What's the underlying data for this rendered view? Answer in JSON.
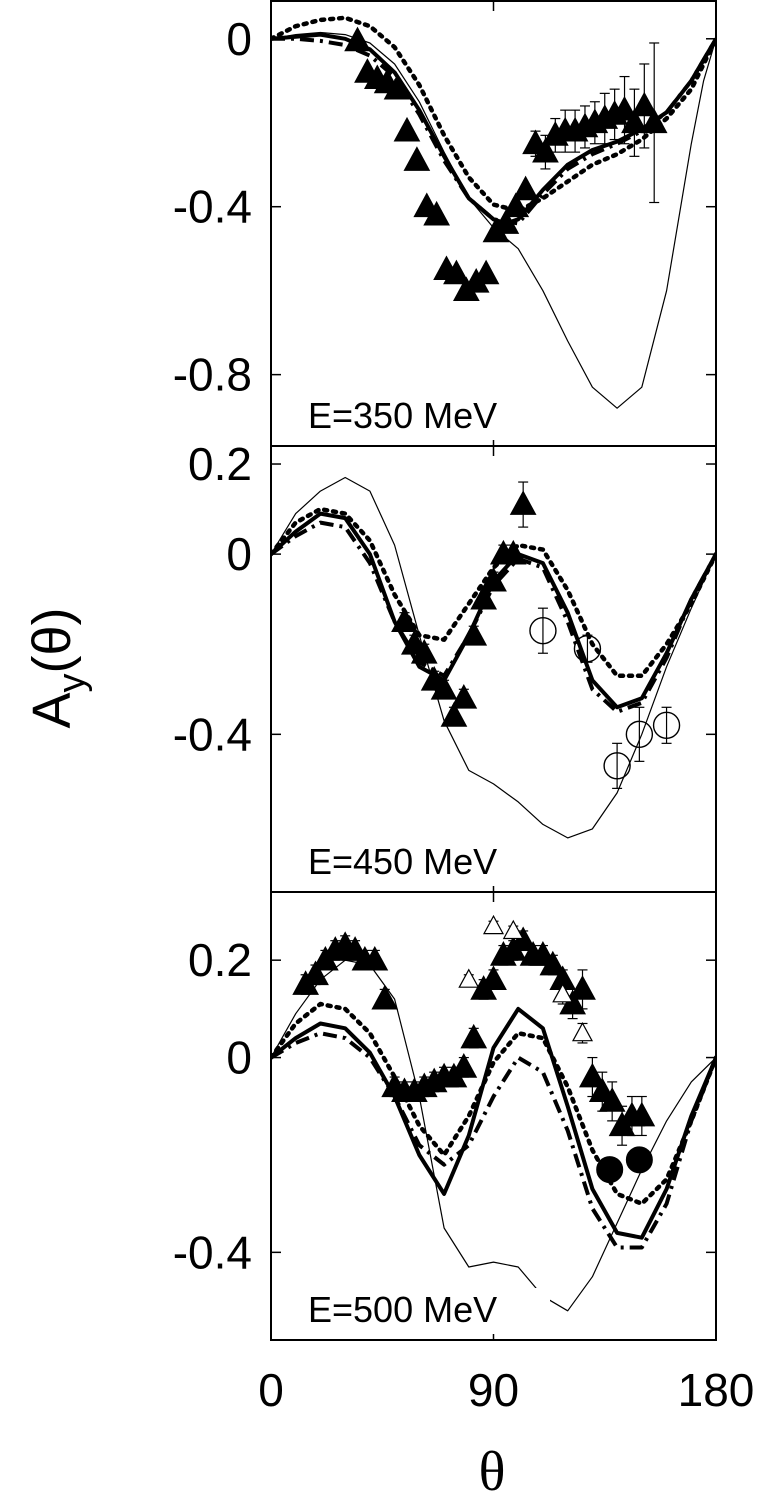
{
  "figure": {
    "ylabel_main": "A",
    "ylabel_sub": "y",
    "ylabel_arg": "(θ)",
    "xlabel": "θ"
  },
  "chart_data": [
    {
      "type": "line",
      "panel_label": "E=350 MeV",
      "xlim": [
        0,
        180
      ],
      "ylim": [
        -0.97,
        0.09
      ],
      "x_ticks": [
        0,
        90,
        180
      ],
      "x_tick_labels": [
        "0",
        "90",
        "180"
      ],
      "y_ticks": [
        0,
        -0.4,
        -0.8
      ],
      "y_tick_labels": [
        "0",
        "-0.4",
        "-0.8"
      ],
      "show_x_tick_labels": false,
      "series": [
        {
          "style": "thick-solid",
          "x": [
            0,
            10,
            20,
            30,
            40,
            50,
            60,
            70,
            80,
            90,
            95,
            100,
            110,
            120,
            130,
            140,
            150,
            160,
            170,
            180
          ],
          "y": [
            0,
            0.005,
            0.01,
            0.0,
            -0.025,
            -0.08,
            -0.17,
            -0.28,
            -0.38,
            -0.43,
            -0.44,
            -0.43,
            -0.36,
            -0.3,
            -0.265,
            -0.245,
            -0.215,
            -0.175,
            -0.1,
            0
          ]
        },
        {
          "style": "dotted",
          "x": [
            0,
            10,
            20,
            30,
            40,
            50,
            60,
            70,
            80,
            90,
            100,
            110,
            120,
            130,
            140,
            150,
            160,
            170,
            180
          ],
          "y": [
            0,
            0.03,
            0.045,
            0.05,
            0.03,
            -0.02,
            -0.11,
            -0.23,
            -0.33,
            -0.395,
            -0.41,
            -0.38,
            -0.34,
            -0.3,
            -0.275,
            -0.24,
            -0.19,
            -0.12,
            0
          ]
        },
        {
          "style": "dash-dot",
          "x": [
            0,
            10,
            20,
            30,
            40,
            50,
            60,
            70,
            80,
            90,
            100,
            110,
            120,
            130,
            140,
            150,
            160,
            170,
            180
          ],
          "y": [
            0,
            0.0,
            -0.005,
            -0.015,
            -0.04,
            -0.09,
            -0.18,
            -0.29,
            -0.38,
            -0.43,
            -0.44,
            -0.37,
            -0.31,
            -0.275,
            -0.25,
            -0.22,
            -0.175,
            -0.1,
            0
          ]
        },
        {
          "style": "thin-solid",
          "x": [
            0,
            10,
            20,
            30,
            40,
            50,
            60,
            70,
            80,
            90,
            100,
            110,
            120,
            130,
            140,
            150,
            160,
            170,
            175,
            180
          ],
          "y": [
            0,
            0.01,
            0.015,
            0.01,
            -0.01,
            -0.06,
            -0.15,
            -0.27,
            -0.38,
            -0.45,
            -0.5,
            -0.6,
            -0.72,
            -0.83,
            -0.88,
            -0.83,
            -0.6,
            -0.25,
            -0.1,
            0
          ]
        }
      ],
      "points": [
        {
          "marker": "filled-triangle",
          "x": [
            35,
            39,
            43,
            47,
            51,
            55,
            59,
            63,
            67,
            71,
            75,
            79,
            83,
            87,
            91,
            95,
            99,
            103,
            107,
            111,
            115,
            119,
            123,
            127,
            131,
            135,
            139,
            143,
            147,
            151,
            155
          ],
          "y": [
            -0.005,
            -0.08,
            -0.095,
            -0.105,
            -0.12,
            -0.22,
            -0.29,
            -0.4,
            -0.42,
            -0.55,
            -0.56,
            -0.6,
            -0.58,
            -0.56,
            -0.46,
            -0.44,
            -0.4,
            -0.36,
            -0.25,
            -0.27,
            -0.23,
            -0.22,
            -0.22,
            -0.21,
            -0.2,
            -0.19,
            -0.18,
            -0.17,
            -0.2,
            -0.16,
            -0.2
          ],
          "yerr": [
            0.01,
            0.01,
            0.01,
            0.01,
            0.01,
            0.01,
            0.01,
            0.01,
            0.01,
            0.01,
            0.01,
            0.01,
            0.01,
            0.01,
            0.01,
            0.01,
            0.01,
            0.01,
            0.03,
            0.04,
            0.04,
            0.05,
            0.05,
            0.05,
            0.05,
            0.06,
            0.06,
            0.08,
            0.08,
            0.1,
            0.19
          ]
        }
      ]
    },
    {
      "type": "line",
      "panel_label": "E=450 MeV",
      "xlim": [
        0,
        180
      ],
      "ylim": [
        -0.75,
        0.24
      ],
      "x_ticks": [
        0,
        90,
        180
      ],
      "x_tick_labels": [
        "0",
        "90",
        "180"
      ],
      "y_ticks": [
        0.2,
        0,
        -0.4
      ],
      "y_tick_labels": [
        "0.2",
        "0",
        "-0.4"
      ],
      "show_x_tick_labels": false,
      "series": [
        {
          "style": "thick-solid",
          "x": [
            0,
            10,
            20,
            30,
            40,
            50,
            60,
            70,
            80,
            90,
            100,
            110,
            120,
            130,
            140,
            150,
            160,
            170,
            180
          ],
          "y": [
            0,
            0.05,
            0.09,
            0.08,
            0.0,
            -0.15,
            -0.25,
            -0.28,
            -0.18,
            -0.06,
            0.0,
            -0.02,
            -0.13,
            -0.28,
            -0.34,
            -0.32,
            -0.22,
            -0.1,
            0
          ]
        },
        {
          "style": "dotted",
          "x": [
            0,
            10,
            20,
            30,
            40,
            50,
            60,
            70,
            80,
            90,
            100,
            110,
            120,
            130,
            140,
            150,
            160,
            170,
            180
          ],
          "y": [
            0,
            0.07,
            0.1,
            0.09,
            0.03,
            -0.09,
            -0.18,
            -0.19,
            -0.11,
            -0.03,
            0.02,
            0.01,
            -0.08,
            -0.2,
            -0.27,
            -0.27,
            -0.2,
            -0.11,
            0
          ]
        },
        {
          "style": "dash-dot",
          "x": [
            0,
            10,
            20,
            30,
            40,
            50,
            60,
            70,
            80,
            90,
            100,
            110,
            120,
            130,
            140,
            150,
            160,
            170,
            180
          ],
          "y": [
            0,
            0.04,
            0.07,
            0.06,
            -0.02,
            -0.15,
            -0.24,
            -0.27,
            -0.18,
            -0.07,
            -0.01,
            -0.03,
            -0.15,
            -0.3,
            -0.35,
            -0.33,
            -0.23,
            -0.1,
            0
          ]
        },
        {
          "style": "thin-solid",
          "x": [
            0,
            10,
            20,
            30,
            40,
            50,
            60,
            70,
            80,
            90,
            100,
            110,
            120,
            130,
            140,
            150,
            160,
            170,
            180
          ],
          "y": [
            0,
            0.09,
            0.14,
            0.17,
            0.14,
            0.02,
            -0.18,
            -0.37,
            -0.48,
            -0.51,
            -0.55,
            -0.6,
            -0.63,
            -0.61,
            -0.53,
            -0.4,
            -0.25,
            -0.12,
            0
          ]
        }
      ],
      "points": [
        {
          "marker": "filled-triangle",
          "x": [
            54,
            58,
            62,
            66,
            70,
            74,
            78,
            82,
            86,
            90,
            94,
            98,
            102
          ],
          "y": [
            -0.15,
            -0.2,
            -0.22,
            -0.28,
            -0.3,
            -0.36,
            -0.32,
            -0.18,
            -0.1,
            -0.06,
            0.0,
            0.0,
            0.11
          ],
          "yerr": [
            0.02,
            0.02,
            0.02,
            0.02,
            0.02,
            0.02,
            0.02,
            0.02,
            0.02,
            0.02,
            0.02,
            0.02,
            0.05
          ]
        },
        {
          "marker": "open-circle",
          "x": [
            110,
            128,
            140,
            149,
            160
          ],
          "y": [
            -0.17,
            -0.21,
            -0.47,
            -0.4,
            -0.38
          ],
          "yerr": [
            0.05,
            0.03,
            0.05,
            0.06,
            0.04
          ]
        }
      ]
    },
    {
      "type": "line",
      "panel_label": "E=500 MeV",
      "xlim": [
        0,
        180
      ],
      "ylim": [
        -0.58,
        0.34
      ],
      "x_ticks": [
        0,
        90,
        180
      ],
      "x_tick_labels": [
        "0",
        "90",
        "180"
      ],
      "y_ticks": [
        0.2,
        0,
        -0.4
      ],
      "y_tick_labels": [
        "0.2",
        "0",
        "-0.4"
      ],
      "show_x_tick_labels": true,
      "series": [
        {
          "style": "thick-solid",
          "x": [
            0,
            10,
            20,
            30,
            40,
            50,
            60,
            70,
            80,
            90,
            100,
            110,
            120,
            130,
            140,
            150,
            160,
            170,
            180
          ],
          "y": [
            0,
            0.04,
            0.07,
            0.06,
            0.01,
            -0.08,
            -0.2,
            -0.28,
            -0.16,
            0.02,
            0.1,
            0.06,
            -0.1,
            -0.27,
            -0.36,
            -0.37,
            -0.27,
            -0.12,
            0
          ]
        },
        {
          "style": "dotted",
          "x": [
            0,
            10,
            20,
            30,
            40,
            50,
            60,
            70,
            80,
            90,
            100,
            110,
            120,
            130,
            140,
            150,
            160,
            170,
            180
          ],
          "y": [
            0,
            0.07,
            0.11,
            0.1,
            0.05,
            -0.04,
            -0.14,
            -0.2,
            -0.12,
            -0.01,
            0.05,
            0.04,
            -0.06,
            -0.19,
            -0.28,
            -0.3,
            -0.25,
            -0.13,
            0
          ]
        },
        {
          "style": "dash-dot",
          "x": [
            0,
            10,
            20,
            30,
            40,
            50,
            60,
            70,
            80,
            90,
            100,
            110,
            120,
            130,
            140,
            150,
            160,
            170,
            180
          ],
          "y": [
            0,
            0.03,
            0.05,
            0.04,
            0.0,
            -0.08,
            -0.18,
            -0.22,
            -0.18,
            -0.08,
            0.0,
            -0.03,
            -0.15,
            -0.31,
            -0.39,
            -0.39,
            -0.3,
            -0.13,
            0
          ]
        },
        {
          "style": "thin-solid",
          "x": [
            0,
            10,
            20,
            30,
            40,
            50,
            60,
            70,
            80,
            90,
            100,
            110,
            120,
            130,
            140,
            150,
            160,
            170,
            180
          ],
          "y": [
            0,
            0.09,
            0.16,
            0.2,
            0.19,
            0.12,
            -0.08,
            -0.35,
            -0.43,
            -0.42,
            -0.43,
            -0.49,
            -0.52,
            -0.45,
            -0.34,
            -0.23,
            -0.13,
            -0.05,
            0
          ]
        }
      ],
      "points": [
        {
          "marker": "filled-triangle",
          "x": [
            14,
            18,
            22,
            26,
            30,
            34,
            38,
            42,
            46,
            50,
            54,
            58,
            62,
            66,
            70,
            74,
            78,
            82,
            86,
            90,
            94,
            98,
            102,
            106,
            110,
            114,
            118,
            122,
            126,
            130,
            134,
            138,
            142,
            146,
            150
          ],
          "y": [
            0.15,
            0.17,
            0.2,
            0.22,
            0.23,
            0.22,
            0.2,
            0.2,
            0.12,
            -0.06,
            -0.07,
            -0.07,
            -0.06,
            -0.05,
            -0.04,
            -0.04,
            -0.02,
            0.04,
            0.14,
            0.16,
            0.21,
            0.22,
            0.24,
            0.21,
            0.21,
            0.19,
            0.16,
            0.11,
            0.14,
            -0.04,
            -0.07,
            -0.09,
            -0.14,
            -0.12,
            -0.12
          ],
          "yerr": [
            0.02,
            0.02,
            0.02,
            0.02,
            0.02,
            0.02,
            0.02,
            0.02,
            0.02,
            0.02,
            0.02,
            0.02,
            0.02,
            0.02,
            0.02,
            0.02,
            0.02,
            0.02,
            0.02,
            0.02,
            0.02,
            0.02,
            0.02,
            0.02,
            0.02,
            0.02,
            0.02,
            0.03,
            0.04,
            0.04,
            0.04,
            0.04,
            0.04,
            0.04,
            0.04
          ]
        },
        {
          "marker": "open-triangle",
          "x": [
            80,
            90,
            98,
            118,
            126
          ],
          "y": [
            0.16,
            0.27,
            0.26,
            0.13,
            0.05
          ],
          "yerr": [
            0.01,
            0.01,
            0.01,
            0.02,
            0.02
          ]
        },
        {
          "marker": "filled-circle",
          "x": [
            137,
            149
          ],
          "y": [
            -0.23,
            -0.21
          ],
          "yerr": [
            0.02,
            0.02
          ]
        }
      ]
    }
  ]
}
